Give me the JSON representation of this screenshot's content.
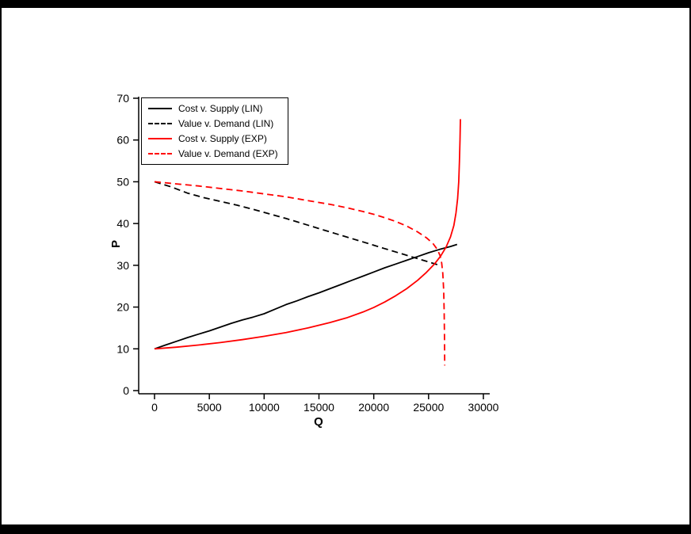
{
  "chart_data": {
    "type": "line",
    "title": "",
    "xlabel": "Q",
    "ylabel": "P",
    "xlim": [
      0,
      30000
    ],
    "ylim": [
      0,
      70
    ],
    "x_ticks": [
      0,
      5000,
      10000,
      15000,
      20000,
      25000,
      30000
    ],
    "y_ticks": [
      0,
      10,
      20,
      30,
      40,
      50,
      60,
      70
    ],
    "grid": false,
    "legend_position": "top-left-inside",
    "axis_color": "#000000",
    "background_color": "#ffffff",
    "frame_color": "#000000",
    "series": [
      {
        "name": "Cost v. Supply (LIN)",
        "color": "#000000",
        "dash": "solid",
        "points": [
          [
            0,
            10
          ],
          [
            1000,
            10.9
          ],
          [
            2000,
            11.8
          ],
          [
            3000,
            12.7
          ],
          [
            4000,
            13.5
          ],
          [
            5000,
            14.3
          ],
          [
            6000,
            15.2
          ],
          [
            7000,
            16.1
          ],
          [
            8000,
            16.9
          ],
          [
            9000,
            17.6
          ],
          [
            10000,
            18.4
          ],
          [
            11000,
            19.5
          ],
          [
            12000,
            20.6
          ],
          [
            13000,
            21.5
          ],
          [
            14000,
            22.5
          ],
          [
            15000,
            23.4
          ],
          [
            16000,
            24.4
          ],
          [
            17000,
            25.4
          ],
          [
            18000,
            26.4
          ],
          [
            19000,
            27.4
          ],
          [
            20000,
            28.4
          ],
          [
            21000,
            29.4
          ],
          [
            22000,
            30.3
          ],
          [
            23000,
            31.2
          ],
          [
            24000,
            32.1
          ],
          [
            25000,
            33.0
          ],
          [
            26000,
            33.8
          ],
          [
            27000,
            34.5
          ],
          [
            27600,
            35.0
          ]
        ]
      },
      {
        "name": "Value v. Demand (LIN)",
        "color": "#000000",
        "dash": "dashed",
        "points": [
          [
            0,
            50
          ],
          [
            1500,
            48.8
          ],
          [
            3000,
            47.3
          ],
          [
            4500,
            46.2
          ],
          [
            6000,
            45.3
          ],
          [
            7500,
            44.4
          ],
          [
            9000,
            43.4
          ],
          [
            10500,
            42.3
          ],
          [
            12000,
            41.2
          ],
          [
            13500,
            40.0
          ],
          [
            15000,
            38.8
          ],
          [
            16500,
            37.6
          ],
          [
            18000,
            36.4
          ],
          [
            19500,
            35.2
          ],
          [
            21000,
            34.0
          ],
          [
            22500,
            32.8
          ],
          [
            24000,
            31.6
          ],
          [
            25000,
            30.8
          ],
          [
            26000,
            30.0
          ]
        ]
      },
      {
        "name": "Cost v. Supply (EXP)",
        "color": "#ff0000",
        "dash": "solid",
        "points": [
          [
            0,
            10
          ],
          [
            2000,
            10.4
          ],
          [
            4000,
            10.9
          ],
          [
            6000,
            11.5
          ],
          [
            8000,
            12.2
          ],
          [
            10000,
            13.0
          ],
          [
            12000,
            13.9
          ],
          [
            14000,
            15.0
          ],
          [
            16000,
            16.3
          ],
          [
            17500,
            17.4
          ],
          [
            19000,
            18.8
          ],
          [
            20000,
            19.9
          ],
          [
            21000,
            21.2
          ],
          [
            22000,
            22.7
          ],
          [
            23000,
            24.4
          ],
          [
            24000,
            26.4
          ],
          [
            24800,
            28.3
          ],
          [
            25500,
            30.2
          ],
          [
            26100,
            32.2
          ],
          [
            26600,
            34.4
          ],
          [
            27000,
            36.8
          ],
          [
            27300,
            39.5
          ],
          [
            27500,
            42.5
          ],
          [
            27650,
            46.0
          ],
          [
            27750,
            50.0
          ],
          [
            27820,
            55.0
          ],
          [
            27870,
            60.0
          ],
          [
            27900,
            65.0
          ]
        ]
      },
      {
        "name": "Value v. Demand (EXP)",
        "color": "#ff0000",
        "dash": "dashed",
        "points": [
          [
            0,
            50
          ],
          [
            2000,
            49.5
          ],
          [
            4000,
            49.0
          ],
          [
            6000,
            48.4
          ],
          [
            8000,
            47.8
          ],
          [
            10000,
            47.1
          ],
          [
            12000,
            46.4
          ],
          [
            14000,
            45.5
          ],
          [
            16000,
            44.6
          ],
          [
            17500,
            43.8
          ],
          [
            19000,
            42.9
          ],
          [
            20000,
            42.2
          ],
          [
            21000,
            41.4
          ],
          [
            22000,
            40.5
          ],
          [
            23000,
            39.4
          ],
          [
            24000,
            38.0
          ],
          [
            24800,
            36.6
          ],
          [
            25400,
            35.2
          ],
          [
            25800,
            33.8
          ],
          [
            26050,
            32.3
          ],
          [
            26200,
            30.5
          ],
          [
            26300,
            28.0
          ],
          [
            26380,
            24.0
          ],
          [
            26420,
            19.0
          ],
          [
            26450,
            13.0
          ],
          [
            26470,
            6.0
          ]
        ]
      }
    ]
  }
}
